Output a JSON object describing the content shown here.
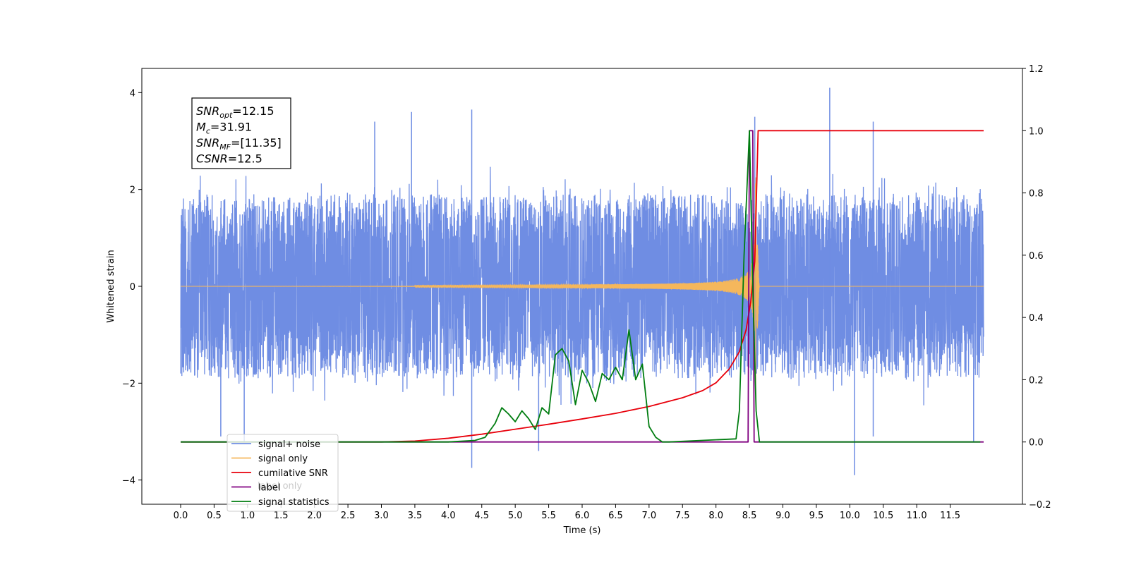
{
  "chart_data": {
    "type": "line",
    "title": "",
    "xlabel": "Time (s)",
    "ylabel": "Whitened strain",
    "y2label": "",
    "xlim": [
      -0.58,
      12.58
    ],
    "ylim": [
      -4.5,
      4.5
    ],
    "y2lim": [
      -0.2,
      1.2
    ],
    "grid": false,
    "legend_position": "lower-left",
    "x_ticks": [
      "0.0",
      "0.5",
      "1.0",
      "1.5",
      "2.0",
      "2.5",
      "3.0",
      "3.5",
      "4.0",
      "4.5",
      "5.0",
      "5.5",
      "6.0",
      "6.5",
      "7.0",
      "7.5",
      "8.0",
      "8.5",
      "9.0",
      "9.5",
      "10.0",
      "10.5",
      "11.0",
      "11.5"
    ],
    "y_ticks": [
      "−4",
      "−2",
      "0",
      "2",
      "4"
    ],
    "y2_ticks": [
      "−0.2",
      "0.0",
      "0.2",
      "0.4",
      "0.6",
      "0.8",
      "1.0",
      "1.2"
    ],
    "annotation": {
      "lines": [
        {
          "base": "SNR",
          "sub": "opt",
          "text": "=12.15"
        },
        {
          "base": "M",
          "sub": "c",
          "text": "=31.91"
        },
        {
          "base": "SNR",
          "sub": "MF",
          "text": "=[11.35]"
        },
        {
          "base": "CSNR",
          "sub": "",
          "text": "=12.5"
        }
      ]
    },
    "series": [
      {
        "name": "signal+ noise",
        "axis": "left",
        "color": "#6f8de3",
        "noise_amplitude": 1.9,
        "x_range": [
          0.0,
          12.0
        ],
        "spikes": [
          [
            4.35,
            -3.75
          ],
          [
            4.35,
            3.65
          ],
          [
            9.7,
            4.1
          ],
          [
            10.07,
            -3.9
          ],
          [
            10.35,
            3.4
          ],
          [
            8.58,
            3.5
          ],
          [
            11.85,
            -3.2
          ],
          [
            5.35,
            -3.4
          ],
          [
            0.6,
            -3.1
          ],
          [
            10.35,
            -3.1
          ],
          [
            3.45,
            3.6
          ],
          [
            2.9,
            3.4
          ],
          [
            0.95,
            -3.2
          ]
        ]
      },
      {
        "name": "signal only",
        "axis": "left",
        "color": "#f5b75c",
        "chirp_merger_time": 8.6
      },
      {
        "name": "cumilative SNR",
        "axis": "right",
        "color": "#e8000b",
        "x": [
          0.0,
          2.0,
          3.0,
          3.5,
          4.0,
          4.5,
          5.0,
          5.5,
          6.0,
          6.5,
          7.0,
          7.5,
          7.8,
          8.0,
          8.2,
          8.35,
          8.45,
          8.52,
          8.58,
          8.63,
          11.0,
          12.0
        ],
        "values": [
          0.0,
          0.0,
          0.0,
          0.003,
          0.012,
          0.025,
          0.041,
          0.057,
          0.074,
          0.092,
          0.114,
          0.142,
          0.165,
          0.19,
          0.235,
          0.29,
          0.36,
          0.45,
          0.58,
          1.0,
          1.0,
          1.0
        ]
      },
      {
        "name": "label",
        "axis": "right",
        "color": "#800080",
        "x": [
          0.0,
          8.48,
          8.5,
          8.55,
          8.57,
          12.0
        ],
        "values": [
          0.0,
          0.0,
          1.0,
          1.0,
          0.0,
          0.0
        ]
      },
      {
        "name": "signal statistics",
        "axis": "right",
        "color": "#007d10",
        "x": [
          0.0,
          4.0,
          4.4,
          4.55,
          4.7,
          4.8,
          4.9,
          5.0,
          5.1,
          5.2,
          5.3,
          5.4,
          5.5,
          5.6,
          5.7,
          5.8,
          5.9,
          6.0,
          6.1,
          6.2,
          6.3,
          6.4,
          6.5,
          6.6,
          6.7,
          6.8,
          6.9,
          7.0,
          7.1,
          7.2,
          7.3,
          8.3,
          8.35,
          8.42,
          8.5,
          8.55,
          8.6,
          8.65,
          8.7,
          11.95
        ],
        "values": [
          0.0,
          0.0,
          0.005,
          0.015,
          0.06,
          0.11,
          0.09,
          0.065,
          0.1,
          0.075,
          0.04,
          0.11,
          0.09,
          0.28,
          0.3,
          0.26,
          0.12,
          0.23,
          0.19,
          0.13,
          0.22,
          0.2,
          0.24,
          0.2,
          0.36,
          0.2,
          0.25,
          0.05,
          0.015,
          0.0,
          0.0,
          0.01,
          0.1,
          0.6,
          1.0,
          0.5,
          0.1,
          0.0,
          0.0,
          0.0
        ]
      }
    ],
    "legend_ghost_text": [
      "label only",
      "signal statistics"
    ]
  }
}
